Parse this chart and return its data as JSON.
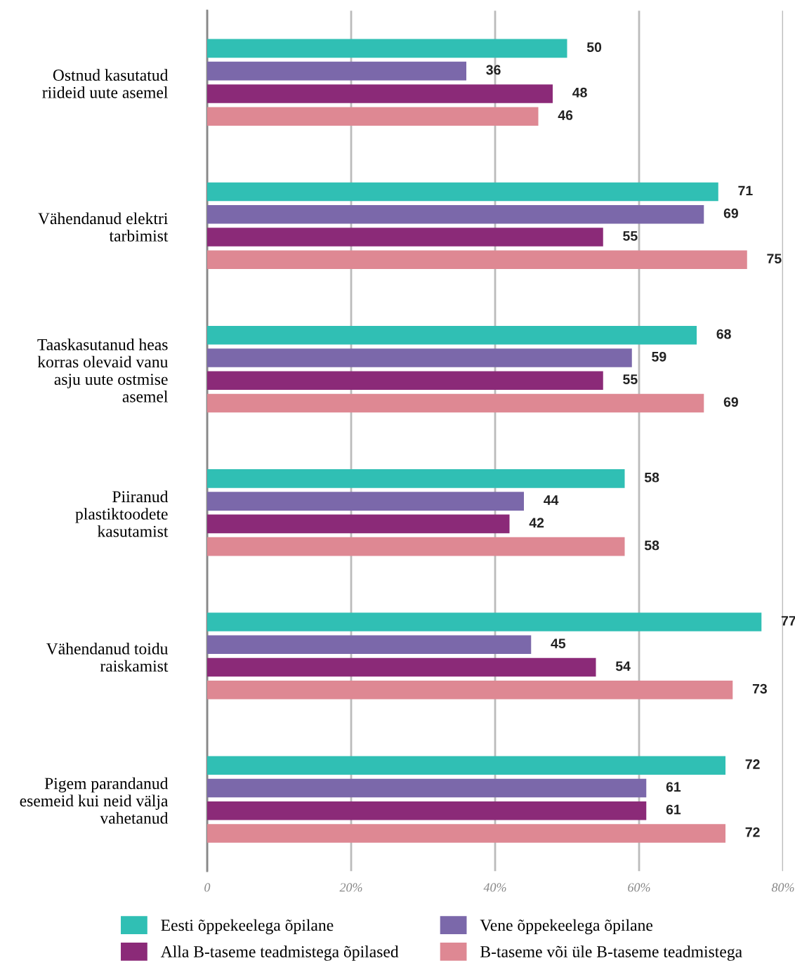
{
  "chart_data": {
    "type": "bar",
    "orientation": "horizontal",
    "categories": [
      "Ostnud kasutatud\nriideid uute asemel",
      "Vähendanud elektri\ntarbimist",
      "Taaskasutanud heas\nkorras olevaid vanu\nasju uute ostmise\nasemel",
      "Piiranud\nplastiktoodete\nkasutamist",
      "Vähendanud toidu\nraiskamist",
      "Pigem parandanud\nesemeid kui neid välja\nvahetanud"
    ],
    "series": [
      {
        "name": "Eesti õppekeelega õpilane",
        "color": "#30bfb4",
        "values": [
          50,
          71,
          68,
          58,
          77,
          72
        ]
      },
      {
        "name": "Vene õppekeelega õpilane",
        "color": "#7b68aa",
        "values": [
          36,
          69,
          59,
          44,
          45,
          61
        ]
      },
      {
        "name": "Alla B-taseme teadmistega õpilased",
        "color": "#8b2a78",
        "values": [
          48,
          55,
          55,
          42,
          54,
          61
        ]
      },
      {
        "name": "B-taseme või üle B-taseme teadmistega",
        "color": "#de8893",
        "values": [
          46,
          75,
          69,
          58,
          73,
          72
        ]
      }
    ],
    "xlim": [
      0,
      80
    ],
    "xticks": [
      0,
      {
        "value": 20,
        "label": "20%"
      },
      {
        "value": 40,
        "label": "40%"
      },
      {
        "value": 60,
        "label": "60%"
      },
      {
        "value": 80,
        "label": "80%"
      }
    ],
    "grid": "x",
    "legend": "bottom",
    "data_labels": true
  }
}
